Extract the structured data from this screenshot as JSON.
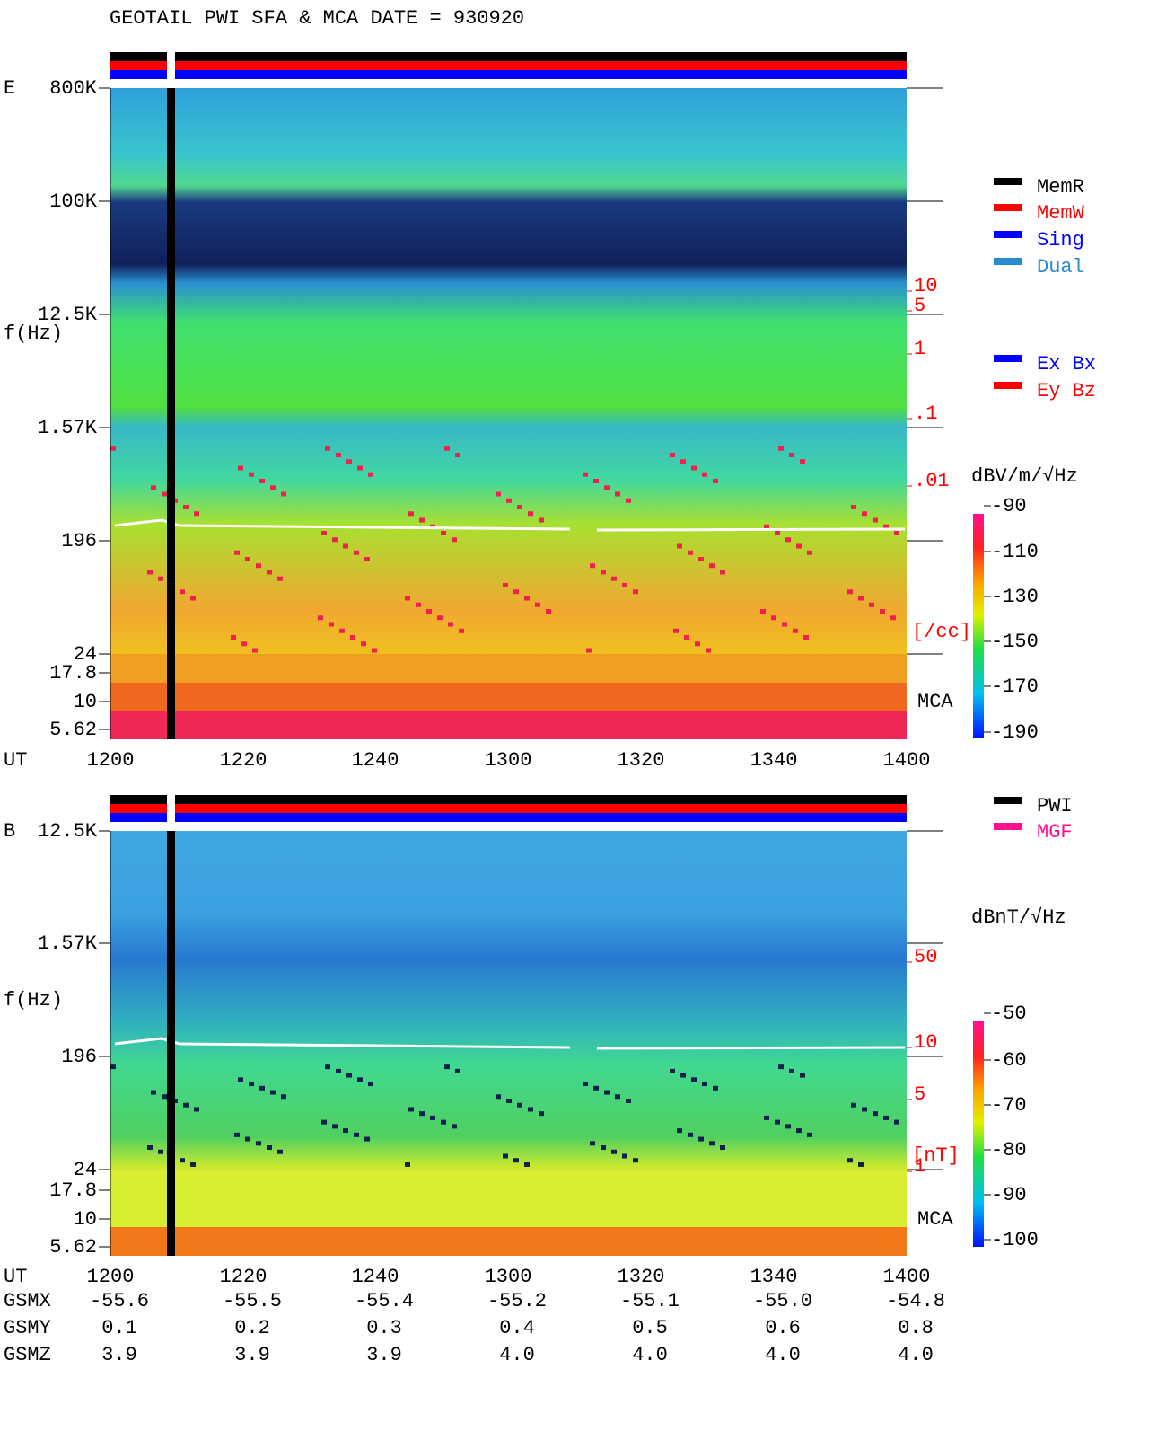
{
  "title": "GEOTAIL  PWI SFA & MCA   DATE = 930920",
  "panels": [
    {
      "label": "E",
      "ylabel": "f(Hz)",
      "yticks": [
        "800K",
        "100K",
        "12.5K",
        "1.57K",
        "196",
        "24",
        "17.8",
        "10",
        "5.62"
      ],
      "xlabel": "UT",
      "xticks": [
        "1200",
        "1220",
        "1240",
        "1300",
        "1320",
        "1340",
        "1400"
      ],
      "right_ticks": [
        "10",
        "5",
        "1",
        ".1",
        ".01"
      ],
      "right_unit": "[/cc]",
      "mca": "MCA",
      "colorbar_unit": "dBV/m/√Hz",
      "colorbar_ticks": [
        "-90",
        "-110",
        "-130",
        "-150",
        "-170",
        "-190"
      ],
      "legends": [
        [
          "MemR",
          "MemW",
          "Sing",
          "Dual"
        ],
        [
          "Ex Bx",
          "Ey Bz"
        ]
      ]
    },
    {
      "label": "B",
      "ylabel": "f(Hz)",
      "yticks": [
        "12.5K",
        "1.57K",
        "196",
        "24",
        "17.8",
        "10",
        "5.62"
      ],
      "xlabel": "UT",
      "xticks": [
        "1200",
        "1220",
        "1240",
        "1300",
        "1320",
        "1340",
        "1400"
      ],
      "right_ticks": [
        "50",
        "10",
        "5",
        "1"
      ],
      "right_unit": "[nT]",
      "mca": "MCA",
      "colorbar_unit": "dBnT/√Hz",
      "colorbar_ticks": [
        "-50",
        "-60",
        "-70",
        "-80",
        "-90",
        "-100"
      ],
      "legends": [
        [
          "PWI",
          "MGF"
        ]
      ]
    }
  ],
  "orbit": [
    {
      "name": "GSMX",
      "values": [
        "-55.6",
        "-55.5",
        "-55.4",
        "-55.2",
        "-55.1",
        "-55.0",
        "-54.8"
      ]
    },
    {
      "name": "GSMY",
      "values": [
        "0.1",
        "0.2",
        "0.3",
        "0.4",
        "0.5",
        "0.6",
        "0.8"
      ]
    },
    {
      "name": "GSMZ",
      "values": [
        "3.9",
        "3.9",
        "3.9",
        "4.0",
        "4.0",
        "4.0",
        "4.0"
      ]
    }
  ]
}
